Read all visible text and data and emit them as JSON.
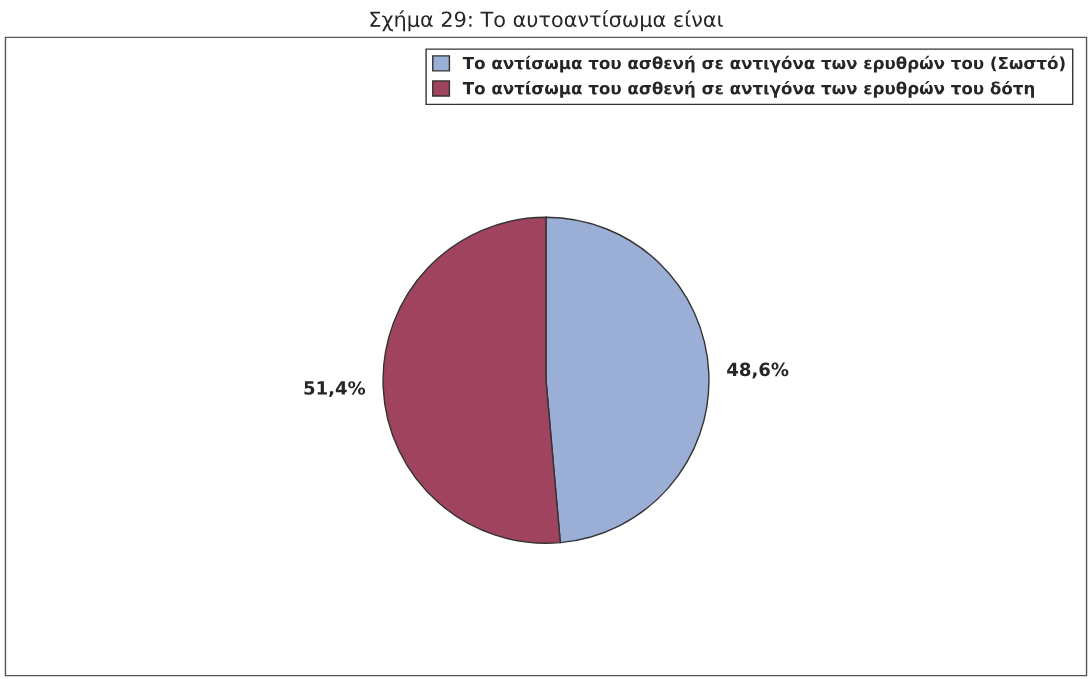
{
  "chart_data": {
    "type": "pie",
    "title": "Σχήμα 29: Το αυτοαντίσωμα είναι",
    "categories": [
      "Το αντίσωμα του ασθενή σε αντιγόνα των ερυθρών του (Σωστό)",
      "Το αντίσωμα του ασθενή σε αντιγόνα των ερυθρών του δότη"
    ],
    "values": [
      48.6,
      51.4
    ],
    "colors": [
      "#9aaed6",
      "#a0435e"
    ],
    "value_labels": [
      "48,6%",
      "51,4%"
    ],
    "legend": "top right"
  }
}
